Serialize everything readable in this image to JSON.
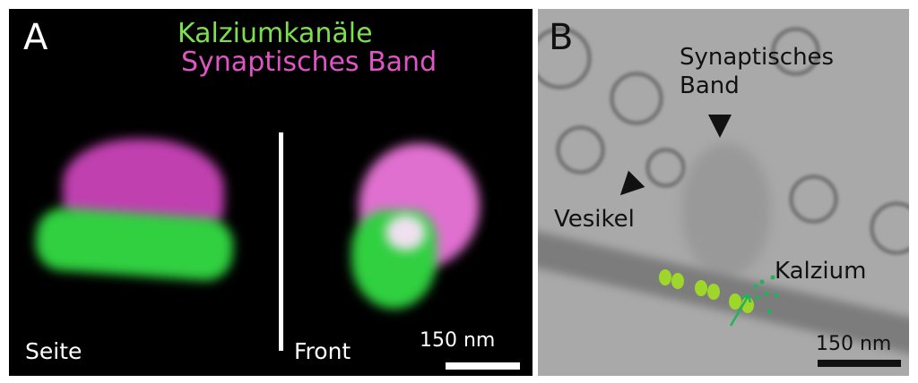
{
  "panel_a": {
    "label": "A",
    "legend": [
      {
        "text": "Kalziumkanäle",
        "color": "#7ddf4f"
      },
      {
        "text": "Synaptisches Band",
        "color": "#e055c6"
      }
    ],
    "left_view_label": "Seite",
    "right_view_label": "Front",
    "scale_bar": "150 nm"
  },
  "panel_b": {
    "label": "B",
    "annotations": {
      "ribbon": "Synaptisches Band",
      "vesicle": "Vesikel",
      "calcium": "Kalzium"
    },
    "scale_bar": "150 nm"
  }
}
